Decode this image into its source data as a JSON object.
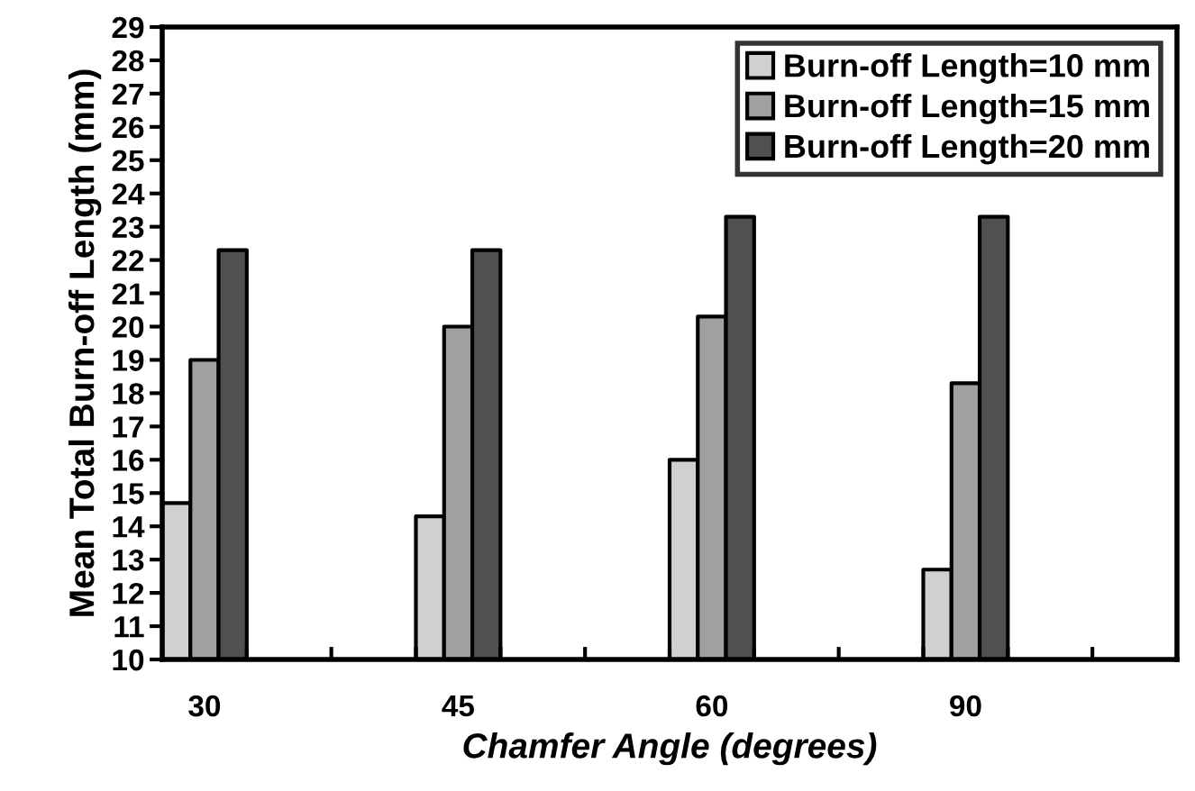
{
  "chart_data": {
    "type": "bar",
    "xlabel": "Chamfer Angle (degrees)",
    "ylabel": "Mean Total Burn-off Length (mm)",
    "categories": [
      "30",
      null,
      null,
      "45",
      null,
      null,
      "60",
      null,
      null,
      "90",
      null,
      null
    ],
    "series": [
      {
        "name": "Burn-off Length=10 mm",
        "color": "#d0d0d0",
        "values": [
          14.7,
          null,
          null,
          14.3,
          null,
          null,
          16.0,
          null,
          null,
          12.7,
          null,
          null
        ]
      },
      {
        "name": "Burn-off Length=15 mm",
        "color": "#a0a0a0",
        "values": [
          19.0,
          null,
          null,
          20.0,
          null,
          null,
          20.3,
          null,
          null,
          18.3,
          null,
          null
        ]
      },
      {
        "name": "Burn-off Length=20 mm",
        "color": "#505050",
        "values": [
          22.3,
          null,
          null,
          22.3,
          null,
          null,
          23.3,
          null,
          null,
          23.3,
          null,
          null
        ]
      }
    ],
    "ylim": [
      10,
      29
    ],
    "yticks": [
      10,
      11,
      12,
      13,
      14,
      15,
      16,
      17,
      18,
      19,
      20,
      21,
      22,
      23,
      24,
      25,
      26,
      27,
      28,
      29
    ],
    "legend": "top right",
    "grid": false
  }
}
